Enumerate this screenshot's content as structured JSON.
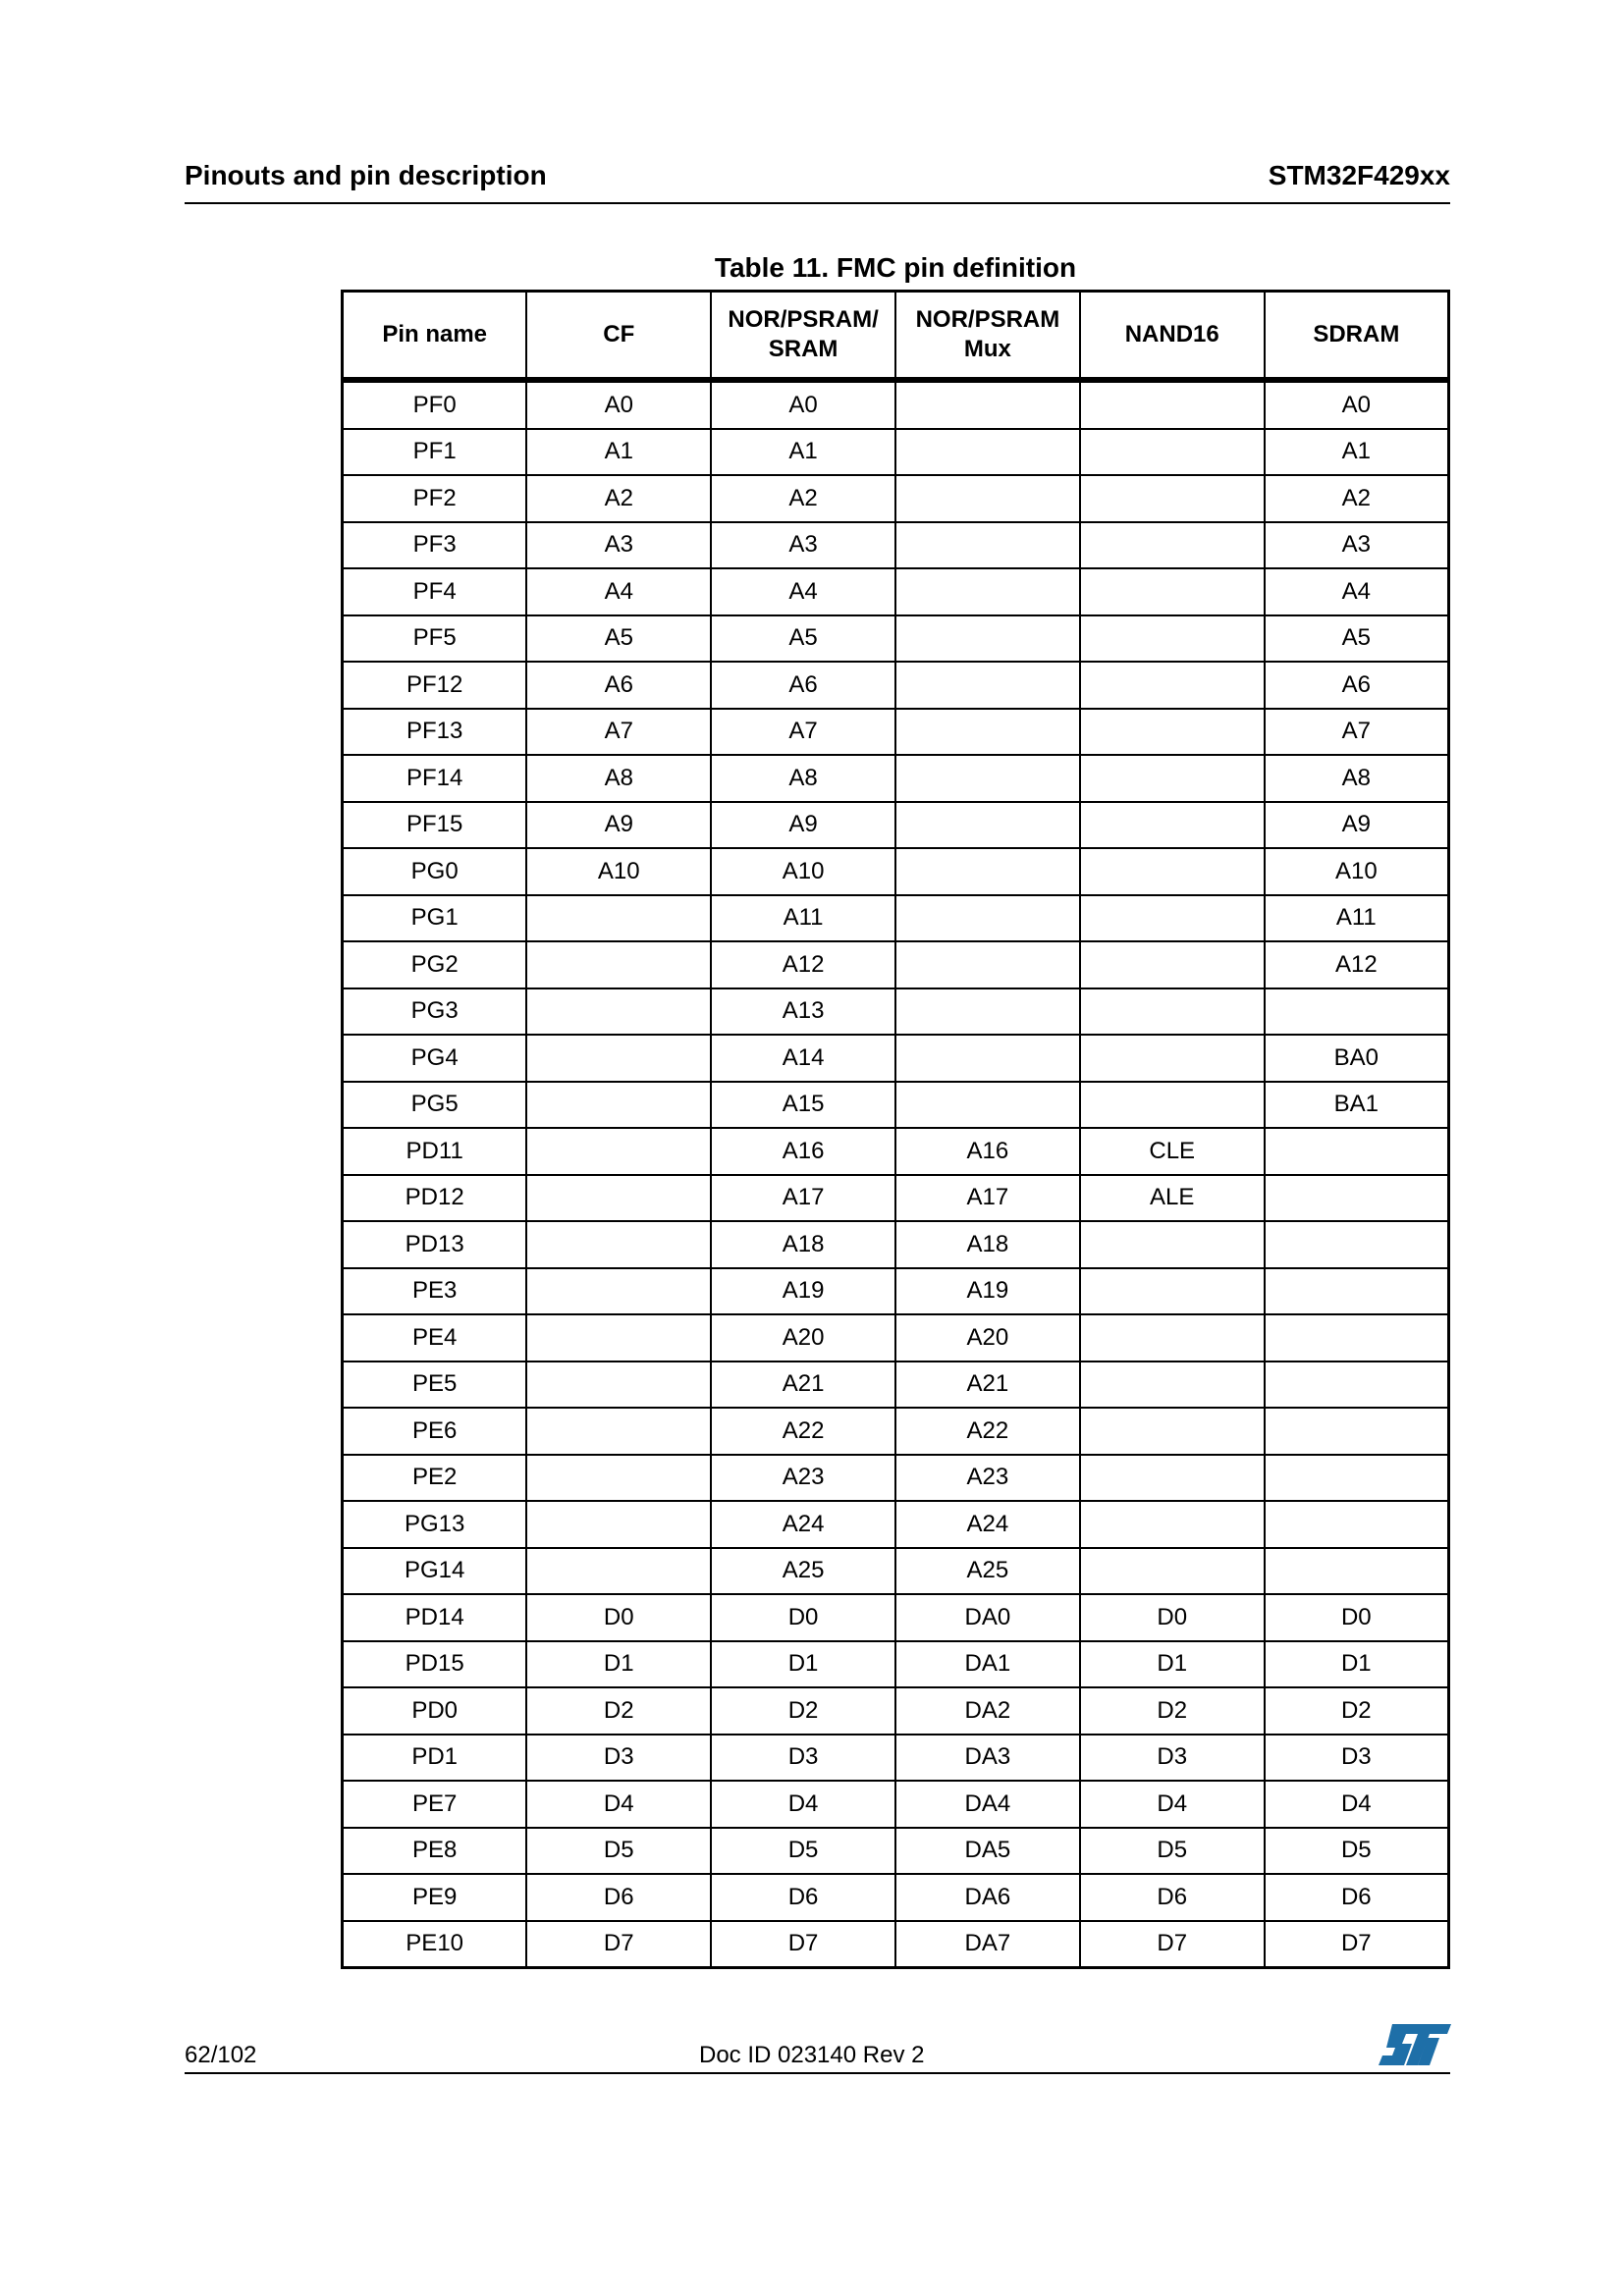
{
  "header": {
    "section": "Pinouts and pin description",
    "part": "STM32F429xx"
  },
  "table": {
    "caption": "Table 11. FMC pin definition",
    "columns": [
      "Pin name",
      "CF",
      "NOR/PSRAM/\nSRAM",
      "NOR/PSRAM\nMux",
      "NAND16",
      "SDRAM"
    ],
    "rows": [
      [
        "PF0",
        "A0",
        "A0",
        "",
        "",
        "A0"
      ],
      [
        "PF1",
        "A1",
        "A1",
        "",
        "",
        "A1"
      ],
      [
        "PF2",
        "A2",
        "A2",
        "",
        "",
        "A2"
      ],
      [
        "PF3",
        "A3",
        "A3",
        "",
        "",
        "A3"
      ],
      [
        "PF4",
        "A4",
        "A4",
        "",
        "",
        "A4"
      ],
      [
        "PF5",
        "A5",
        "A5",
        "",
        "",
        "A5"
      ],
      [
        "PF12",
        "A6",
        "A6",
        "",
        "",
        "A6"
      ],
      [
        "PF13",
        "A7",
        "A7",
        "",
        "",
        "A7"
      ],
      [
        "PF14",
        "A8",
        "A8",
        "",
        "",
        "A8"
      ],
      [
        "PF15",
        "A9",
        "A9",
        "",
        "",
        "A9"
      ],
      [
        "PG0",
        "A10",
        "A10",
        "",
        "",
        "A10"
      ],
      [
        "PG1",
        "",
        "A11",
        "",
        "",
        "A11"
      ],
      [
        "PG2",
        "",
        "A12",
        "",
        "",
        "A12"
      ],
      [
        "PG3",
        "",
        "A13",
        "",
        "",
        ""
      ],
      [
        "PG4",
        "",
        "A14",
        "",
        "",
        "BA0"
      ],
      [
        "PG5",
        "",
        "A15",
        "",
        "",
        "BA1"
      ],
      [
        "PD11",
        "",
        "A16",
        "A16",
        "CLE",
        ""
      ],
      [
        "PD12",
        "",
        "A17",
        "A17",
        "ALE",
        ""
      ],
      [
        "PD13",
        "",
        "A18",
        "A18",
        "",
        ""
      ],
      [
        "PE3",
        "",
        "A19",
        "A19",
        "",
        ""
      ],
      [
        "PE4",
        "",
        "A20",
        "A20",
        "",
        ""
      ],
      [
        "PE5",
        "",
        "A21",
        "A21",
        "",
        ""
      ],
      [
        "PE6",
        "",
        "A22",
        "A22",
        "",
        ""
      ],
      [
        "PE2",
        "",
        "A23",
        "A23",
        "",
        ""
      ],
      [
        "PG13",
        "",
        "A24",
        "A24",
        "",
        ""
      ],
      [
        "PG14",
        "",
        "A25",
        "A25",
        "",
        ""
      ],
      [
        "PD14",
        "D0",
        "D0",
        "DA0",
        "D0",
        "D0"
      ],
      [
        "PD15",
        "D1",
        "D1",
        "DA1",
        "D1",
        "D1"
      ],
      [
        "PD0",
        "D2",
        "D2",
        "DA2",
        "D2",
        "D2"
      ],
      [
        "PD1",
        "D3",
        "D3",
        "DA3",
        "D3",
        "D3"
      ],
      [
        "PE7",
        "D4",
        "D4",
        "DA4",
        "D4",
        "D4"
      ],
      [
        "PE8",
        "D5",
        "D5",
        "DA5",
        "D5",
        "D5"
      ],
      [
        "PE9",
        "D6",
        "D6",
        "DA6",
        "D6",
        "D6"
      ],
      [
        "PE10",
        "D7",
        "D7",
        "DA7",
        "D7",
        "D7"
      ]
    ]
  },
  "footer": {
    "page": "62/102",
    "doc_id": "Doc ID 023140 Rev 2",
    "logo_text": "ST",
    "logo_color": "#1e6fa8"
  }
}
